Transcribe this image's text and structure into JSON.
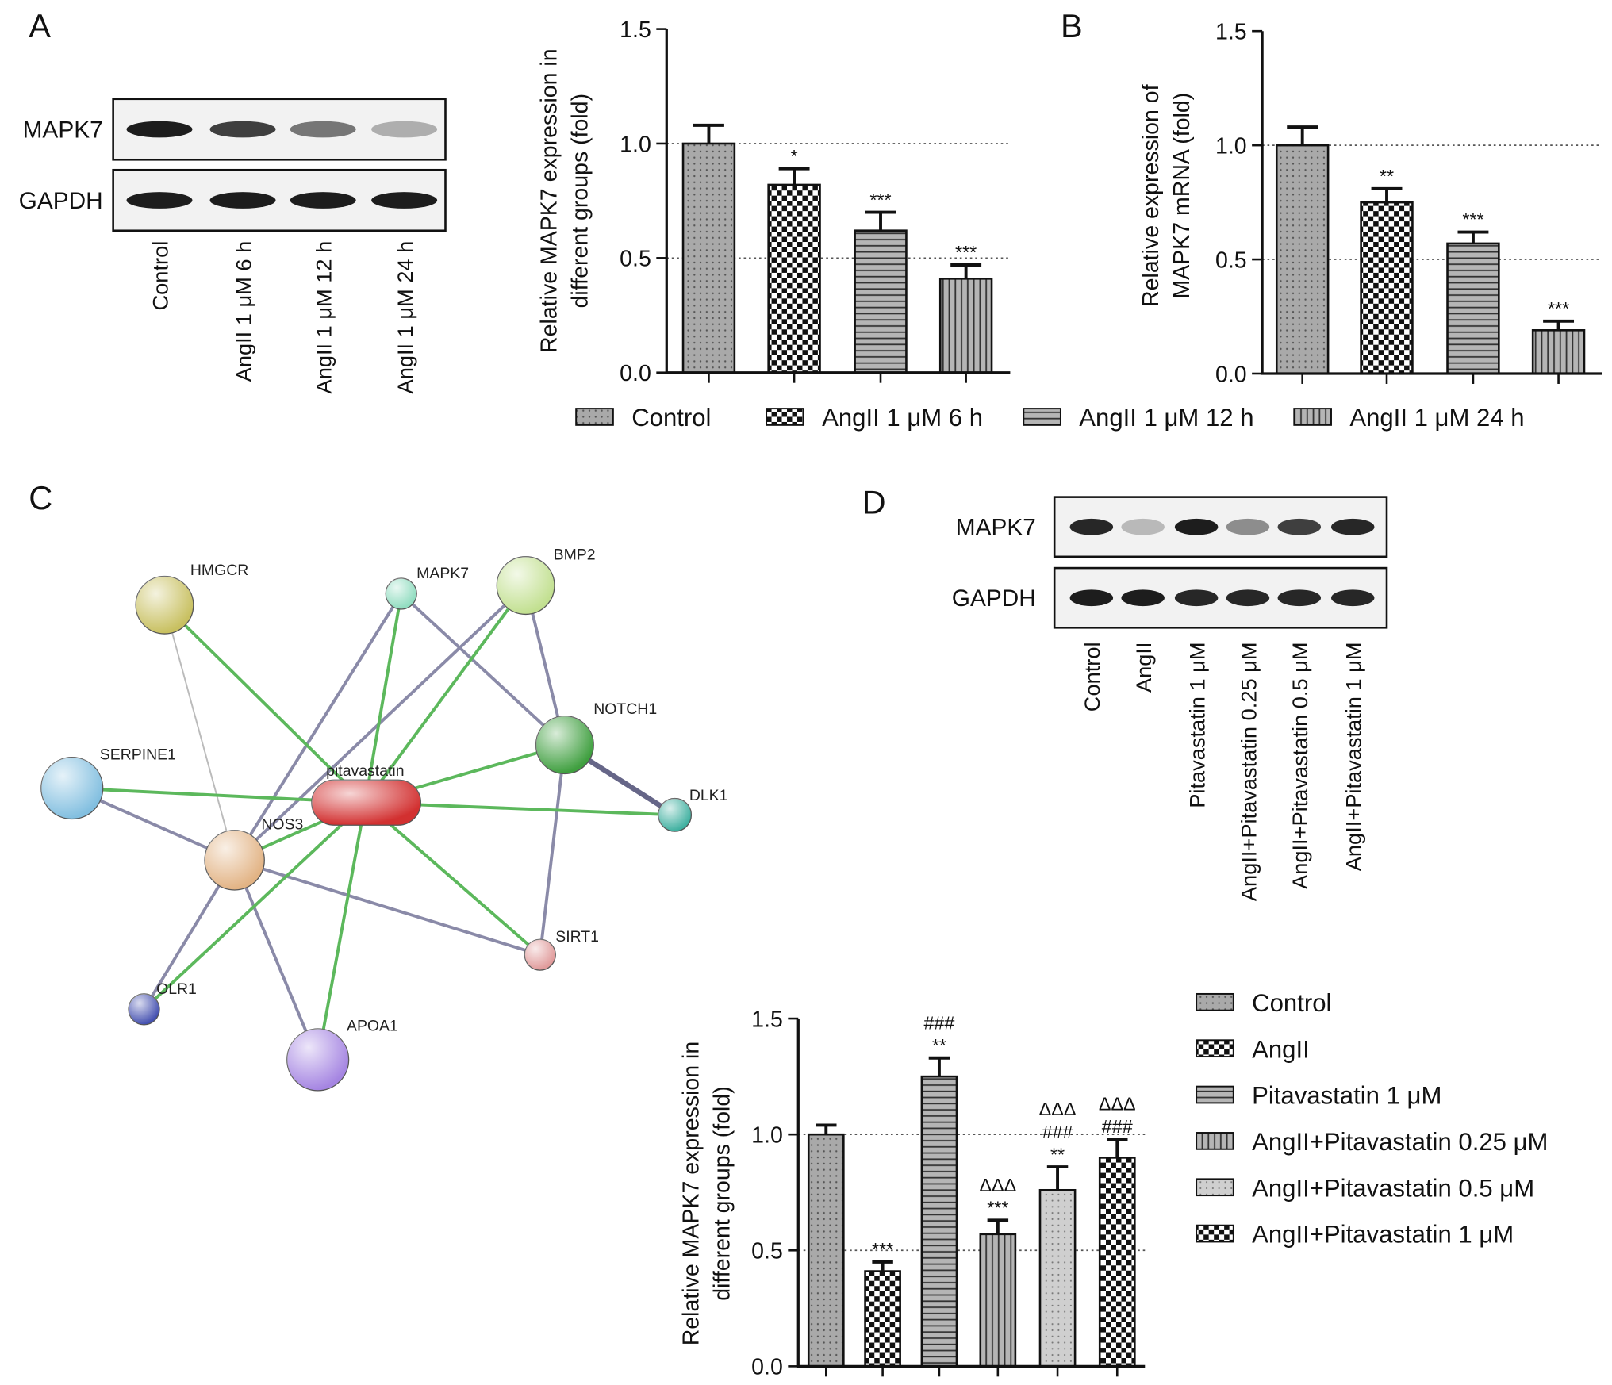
{
  "panels": [
    "A",
    "B",
    "C",
    "D"
  ],
  "blot_a": {
    "proteins": [
      "MAPK7",
      "GAPDH"
    ],
    "lanes": [
      "Control",
      "AngII 1 μM 6 h",
      "AngII 1 μM 12 h",
      "AngII 1 μM 24 h"
    ]
  },
  "network": {
    "nodes": [
      "HMGCR",
      "MAPK7",
      "BMP2",
      "NOTCH1",
      "SERPINE1",
      "pitavastatin",
      "NOS3",
      "DLK1",
      "SIRT1",
      "OLR1",
      "APOA1"
    ]
  },
  "blot_d": {
    "proteins": [
      "MAPK7",
      "GAPDH"
    ],
    "lanes": [
      "Control",
      "AngII",
      "Pitavastatin 1 μM",
      "AngII+Pitavastatin 0.25 μM",
      "AngII+Pitavastatin 0.5 μM",
      "AngII+Pitavastatin 1 μM"
    ]
  },
  "chart_data": [
    {
      "type": "bar",
      "ylabel": [
        "Relative MAPK7 expression in",
        "different groups (fold)"
      ],
      "categories": [
        "Control",
        "AngII 1 μM 6 h",
        "AngII 1 μM 12 h",
        "AngII 1 μM 24 h"
      ],
      "values": [
        1.0,
        0.82,
        0.62,
        0.41
      ],
      "errors": [
        0.08,
        0.07,
        0.08,
        0.06
      ],
      "annotations": [
        [],
        [
          "*"
        ],
        [
          "***"
        ],
        [
          "***"
        ]
      ],
      "patterns": [
        "dots",
        "checker",
        "hlines",
        "vlines"
      ],
      "ylim": [
        0,
        1.5
      ],
      "yticks": [
        {
          "value": 0,
          "label": "0.0"
        },
        {
          "value": 0.5,
          "label": "0.5"
        },
        {
          "value": 1,
          "label": "1.0"
        },
        {
          "value": 1.5,
          "label": "1.5"
        }
      ],
      "ref_lines": [
        0.5,
        1.0
      ],
      "legend": "bottom"
    },
    {
      "type": "bar",
      "ylabel": [
        "Relative expression of",
        "MAPK7 mRNA (fold)"
      ],
      "values": [
        1.0,
        0.75,
        0.57,
        0.19
      ],
      "errors": [
        0.08,
        0.06,
        0.05,
        0.04
      ],
      "annotations": [
        [],
        [
          "**"
        ],
        [
          "***"
        ],
        [
          "***"
        ]
      ],
      "patterns": [
        "dots",
        "checker",
        "hlines",
        "vlines"
      ],
      "ylim": [
        0,
        1.5
      ],
      "yticks": [
        {
          "value": 0,
          "label": "0.0"
        },
        {
          "value": 0.5,
          "label": "0.5"
        },
        {
          "value": 1,
          "label": "1.0"
        },
        {
          "value": 1.5,
          "label": "1.5"
        }
      ],
      "ref_lines": [
        0.5,
        1.0
      ]
    },
    {
      "type": "bar",
      "ylabel": [
        "Relative MAPK7 expression in",
        "different groups (fold)"
      ],
      "categories": [
        "Control",
        "AngII",
        "Pitavastatin 1 μM",
        "AngII+Pitavastatin 0.25 μM",
        "AngII+Pitavastatin 0.5 μM",
        "AngII+Pitavastatin 1 μM"
      ],
      "values": [
        1.0,
        0.41,
        1.25,
        0.57,
        0.76,
        0.9
      ],
      "errors": [
        0.04,
        0.04,
        0.08,
        0.06,
        0.1,
        0.08
      ],
      "annotations": [
        [],
        [
          "***"
        ],
        [
          "###",
          "**"
        ],
        [
          "ΔΔΔ",
          "***"
        ],
        [
          "ΔΔΔ",
          "###",
          "**"
        ],
        [
          "ΔΔΔ",
          "###"
        ]
      ],
      "patterns": [
        "dots",
        "checker",
        "hlines",
        "vlines",
        "dotslight",
        "checker"
      ],
      "ylim": [
        0,
        1.5
      ],
      "yticks": [
        {
          "value": 0,
          "label": "0.0"
        },
        {
          "value": 0.5,
          "label": "0.5"
        },
        {
          "value": 1,
          "label": "1.0"
        },
        {
          "value": 1.5,
          "label": "1.5"
        }
      ],
      "ref_lines": [
        0.5,
        1.0
      ],
      "legend": "right"
    }
  ]
}
